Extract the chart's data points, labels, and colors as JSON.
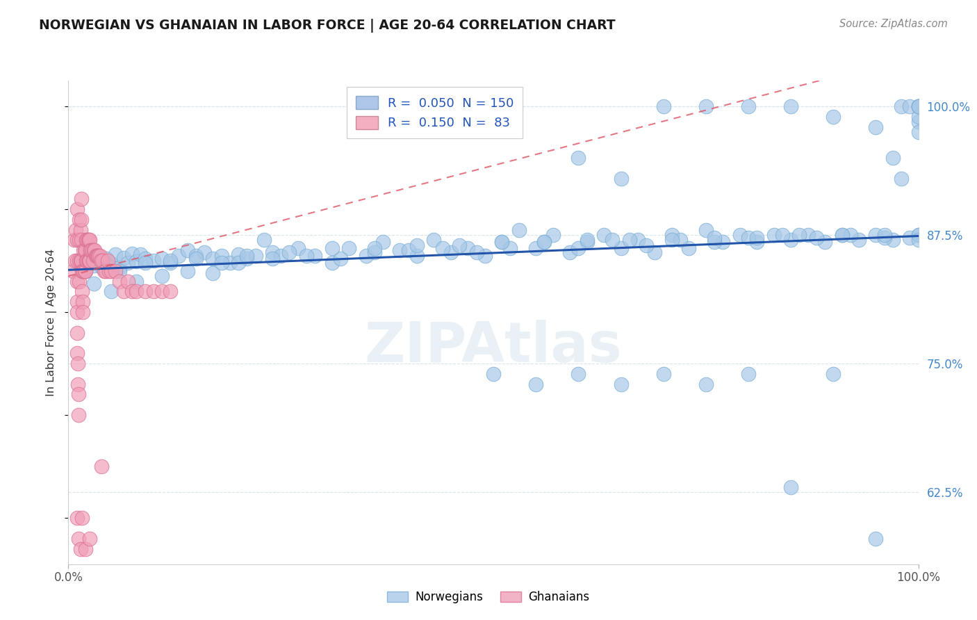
{
  "title": "NORWEGIAN VS GHANAIAN IN LABOR FORCE | AGE 20-64 CORRELATION CHART",
  "source": "Source: ZipAtlas.com",
  "ylabel": "In Labor Force | Age 20-64",
  "xlim": [
    0.0,
    1.0
  ],
  "ylim": [
    0.555,
    1.025
  ],
  "right_yticks": [
    0.625,
    0.75,
    0.875,
    1.0
  ],
  "right_yticklabels": [
    "62.5%",
    "75.0%",
    "87.5%",
    "100.0%"
  ],
  "legend_r_labels": [
    "R =  0.050  N = 150",
    "R =  0.150  N =  83"
  ],
  "legend_series_labels": [
    "Norwegians",
    "Ghanaians"
  ],
  "watermark": "ZIPAtlas",
  "blue_dot_color": "#a8c8e8",
  "blue_dot_edge": "#7aaed4",
  "pink_dot_color": "#f0a0b8",
  "pink_dot_edge": "#d87090",
  "blue_line_color": "#2255aa",
  "pink_line_color": "#dd5566",
  "grid_color": "#d8e4ec",
  "nor_blue_fill": "#aec6e8",
  "gha_pink_fill": "#f4b0c0",
  "nor_x": [
    0.015,
    0.02,
    0.025,
    0.03,
    0.035,
    0.04,
    0.045,
    0.05,
    0.055,
    0.06,
    0.065,
    0.07,
    0.075,
    0.08,
    0.085,
    0.09,
    0.1,
    0.11,
    0.12,
    0.13,
    0.14,
    0.15,
    0.16,
    0.17,
    0.18,
    0.19,
    0.2,
    0.21,
    0.22,
    0.23,
    0.24,
    0.25,
    0.27,
    0.29,
    0.31,
    0.33,
    0.35,
    0.37,
    0.39,
    0.41,
    0.43,
    0.45,
    0.47,
    0.49,
    0.51,
    0.53,
    0.55,
    0.57,
    0.59,
    0.61,
    0.63,
    0.65,
    0.67,
    0.69,
    0.71,
    0.73,
    0.75,
    0.77,
    0.79,
    0.81,
    0.83,
    0.85,
    0.87,
    0.89,
    0.91,
    0.93,
    0.95,
    0.97,
    0.99,
    1.0,
    0.05,
    0.08,
    0.11,
    0.14,
    0.17,
    0.2,
    0.24,
    0.28,
    0.32,
    0.36,
    0.4,
    0.44,
    0.48,
    0.52,
    0.56,
    0.6,
    0.64,
    0.68,
    0.72,
    0.76,
    0.8,
    0.84,
    0.88,
    0.92,
    0.96,
    1.0,
    0.03,
    0.06,
    0.09,
    0.12,
    0.15,
    0.18,
    0.21,
    0.26,
    0.31,
    0.36,
    0.41,
    0.46,
    0.51,
    0.56,
    0.61,
    0.66,
    0.71,
    0.76,
    0.81,
    0.86,
    0.91,
    0.96,
    0.98,
    1.0,
    0.5,
    0.55,
    0.6,
    0.65,
    0.7,
    0.75,
    0.8,
    0.85,
    0.9,
    0.95,
    1.0,
    0.97,
    0.98,
    0.99,
    1.0,
    1.0,
    1.0,
    1.0,
    1.0,
    1.0,
    0.6,
    0.65,
    0.7,
    0.75,
    0.8,
    0.85,
    0.9,
    0.95,
    1.0,
    1.0
  ],
  "nor_y": [
    0.845,
    0.84,
    0.85,
    0.845,
    0.855,
    0.843,
    0.852,
    0.847,
    0.856,
    0.843,
    0.853,
    0.848,
    0.857,
    0.849,
    0.856,
    0.852,
    0.85,
    0.852,
    0.848,
    0.855,
    0.86,
    0.855,
    0.858,
    0.852,
    0.855,
    0.848,
    0.856,
    0.852,
    0.855,
    0.87,
    0.858,
    0.855,
    0.862,
    0.855,
    0.848,
    0.862,
    0.855,
    0.868,
    0.86,
    0.855,
    0.87,
    0.858,
    0.862,
    0.855,
    0.868,
    0.88,
    0.862,
    0.875,
    0.858,
    0.868,
    0.875,
    0.862,
    0.87,
    0.858,
    0.875,
    0.862,
    0.88,
    0.868,
    0.875,
    0.868,
    0.875,
    0.87,
    0.875,
    0.868,
    0.875,
    0.87,
    0.875,
    0.87,
    0.872,
    0.875,
    0.82,
    0.83,
    0.835,
    0.84,
    0.838,
    0.848,
    0.852,
    0.855,
    0.852,
    0.858,
    0.86,
    0.862,
    0.858,
    0.862,
    0.868,
    0.862,
    0.87,
    0.865,
    0.87,
    0.868,
    0.872,
    0.875,
    0.872,
    0.875,
    0.872,
    0.875,
    0.828,
    0.84,
    0.848,
    0.85,
    0.852,
    0.848,
    0.855,
    0.858,
    0.862,
    0.862,
    0.865,
    0.865,
    0.868,
    0.868,
    0.87,
    0.87,
    0.87,
    0.872,
    0.872,
    0.875,
    0.875,
    0.875,
    1.0,
    1.0,
    0.74,
    0.73,
    0.74,
    0.73,
    0.74,
    0.73,
    0.74,
    0.63,
    0.74,
    0.58,
    0.87,
    0.95,
    0.93,
    1.0,
    1.0,
    1.0,
    0.985,
    0.975,
    1.0,
    0.99,
    0.95,
    0.93,
    1.0,
    1.0,
    1.0,
    1.0,
    0.99,
    0.98,
    1.0,
    1.0
  ],
  "gha_x": [
    0.005,
    0.007,
    0.008,
    0.009,
    0.01,
    0.01,
    0.01,
    0.01,
    0.01,
    0.01,
    0.01,
    0.01,
    0.011,
    0.011,
    0.012,
    0.012,
    0.013,
    0.013,
    0.013,
    0.013,
    0.014,
    0.014,
    0.015,
    0.015,
    0.015,
    0.015,
    0.016,
    0.016,
    0.017,
    0.017,
    0.017,
    0.018,
    0.018,
    0.019,
    0.019,
    0.02,
    0.02,
    0.021,
    0.021,
    0.022,
    0.022,
    0.023,
    0.023,
    0.024,
    0.024,
    0.025,
    0.025,
    0.026,
    0.027,
    0.028,
    0.029,
    0.03,
    0.031,
    0.032,
    0.033,
    0.034,
    0.035,
    0.036,
    0.037,
    0.038,
    0.039,
    0.04,
    0.042,
    0.044,
    0.046,
    0.048,
    0.05,
    0.055,
    0.06,
    0.065,
    0.07,
    0.075,
    0.08,
    0.09,
    0.1,
    0.11,
    0.12,
    0.01,
    0.012,
    0.014,
    0.016,
    0.02,
    0.025
  ],
  "gha_y": [
    0.84,
    0.87,
    0.85,
    0.88,
    0.9,
    0.87,
    0.85,
    0.83,
    0.81,
    0.8,
    0.78,
    0.76,
    0.75,
    0.73,
    0.72,
    0.7,
    0.89,
    0.87,
    0.85,
    0.83,
    0.88,
    0.85,
    0.91,
    0.89,
    0.87,
    0.85,
    0.84,
    0.82,
    0.81,
    0.8,
    0.84,
    0.86,
    0.84,
    0.86,
    0.84,
    0.86,
    0.84,
    0.87,
    0.85,
    0.87,
    0.85,
    0.87,
    0.85,
    0.87,
    0.85,
    0.87,
    0.85,
    0.86,
    0.86,
    0.86,
    0.85,
    0.86,
    0.86,
    0.855,
    0.855,
    0.855,
    0.855,
    0.855,
    0.855,
    0.85,
    0.65,
    0.85,
    0.84,
    0.84,
    0.85,
    0.84,
    0.84,
    0.84,
    0.83,
    0.82,
    0.83,
    0.82,
    0.82,
    0.82,
    0.82,
    0.82,
    0.82,
    0.6,
    0.58,
    0.57,
    0.6,
    0.57,
    0.58
  ]
}
